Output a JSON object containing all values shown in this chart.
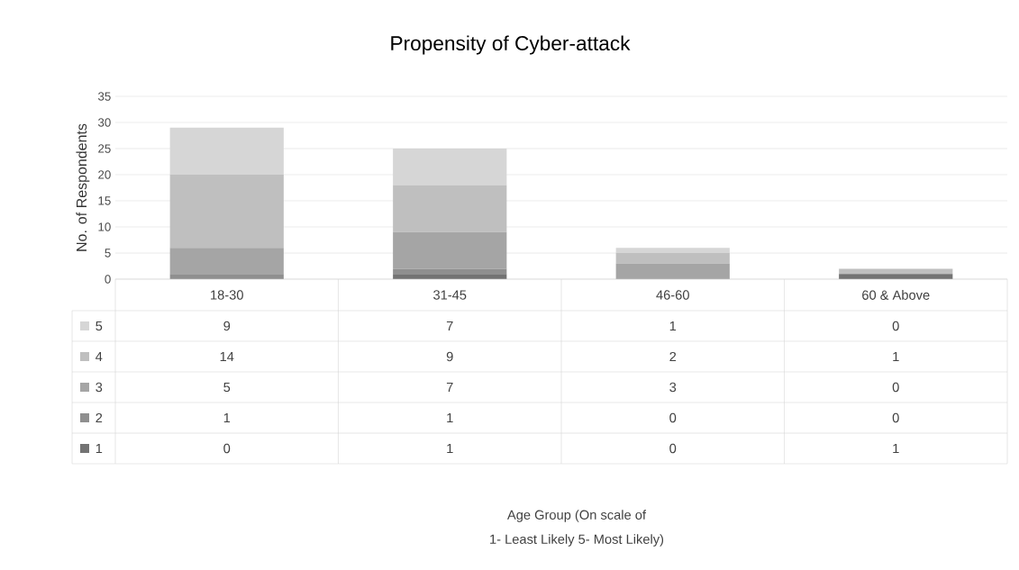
{
  "chart_data": {
    "type": "bar",
    "stacked": true,
    "title": "Propensity of Cyber-attack",
    "ylabel": "No. of Respondents",
    "annotations": [
      "Age Group  (On scale of",
      "1- Least Likely     5- Most Likely)"
    ],
    "categories": [
      "18-30",
      "31-45",
      "46-60",
      "60 & Above"
    ],
    "series": [
      {
        "name": "1",
        "color": "#737373",
        "values": [
          0,
          1,
          0,
          1
        ]
      },
      {
        "name": "2",
        "color": "#8f8f8f",
        "values": [
          1,
          1,
          0,
          0
        ]
      },
      {
        "name": "3",
        "color": "#a5a5a5",
        "values": [
          5,
          7,
          3,
          0
        ]
      },
      {
        "name": "4",
        "color": "#bfbfbf",
        "values": [
          14,
          9,
          2,
          1
        ]
      },
      {
        "name": "5",
        "color": "#d6d6d6",
        "values": [
          9,
          7,
          1,
          0
        ]
      }
    ],
    "ylim": [
      0,
      35
    ],
    "yticks": [
      0,
      5,
      10,
      15,
      20,
      25,
      30,
      35
    ],
    "grid": "y",
    "data_labels": true,
    "legend": "bottom"
  }
}
